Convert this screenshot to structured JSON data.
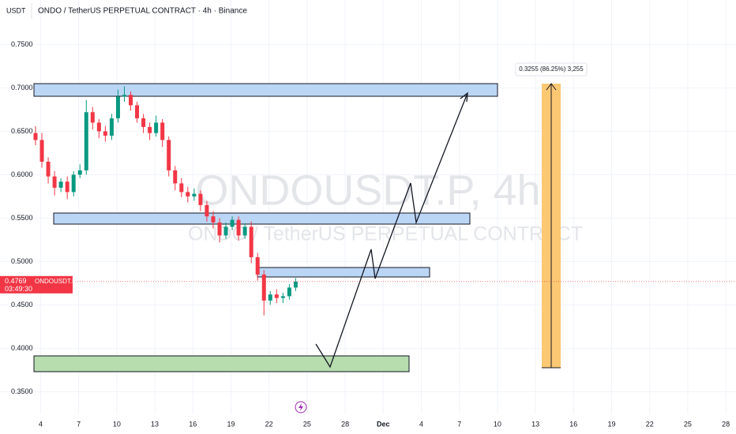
{
  "chart_data": {
    "type": "candlestick",
    "title": "ONDO / TetherUS PERPETUAL CONTRACT · 4h · Binance",
    "y_label": "USDT",
    "watermark": "ONDOUSDT.P, 4h",
    "watermark_subtitle": "ONDO / TetherUS PERPETUAL CONTRACT",
    "symbol_label": "ONDOUSDT.P",
    "last_price": 0.4769,
    "countdown": "03:49:30",
    "measure_label": "0.3255 (86.25%) 3,255",
    "up_color": "#089981",
    "down_color": "#f23645",
    "grid": true,
    "ylim": [
      0.324,
      0.774
    ],
    "yticks": [
      {
        "value": 0.75,
        "label": "0.7500"
      },
      {
        "value": 0.7,
        "label": "0.7000"
      },
      {
        "value": 0.65,
        "label": "0.6500"
      },
      {
        "value": 0.6,
        "label": "0.6000"
      },
      {
        "value": 0.55,
        "label": "0.5500"
      },
      {
        "value": 0.5,
        "label": "0.5000"
      },
      {
        "value": 0.45,
        "label": "0.4500"
      },
      {
        "value": 0.4,
        "label": "0.4000"
      },
      {
        "value": 0.35,
        "label": "0.3500"
      }
    ],
    "xlim": [
      -3.2,
      54.8
    ],
    "xticks": [
      {
        "value": 0,
        "label": "4"
      },
      {
        "value": 3,
        "label": "7"
      },
      {
        "value": 6,
        "label": "10"
      },
      {
        "value": 9,
        "label": "13"
      },
      {
        "value": 12,
        "label": "16"
      },
      {
        "value": 15,
        "label": "19"
      },
      {
        "value": 18,
        "label": "22"
      },
      {
        "value": 21,
        "label": "25"
      },
      {
        "value": 24,
        "label": "28"
      },
      {
        "value": 27,
        "label": "Dec"
      },
      {
        "value": 30,
        "label": "4"
      },
      {
        "value": 33,
        "label": "7"
      },
      {
        "value": 36,
        "label": "10"
      },
      {
        "value": 39,
        "label": "13"
      },
      {
        "value": 42,
        "label": "16"
      },
      {
        "value": 45,
        "label": "19"
      },
      {
        "value": 48,
        "label": "22"
      },
      {
        "value": 51,
        "label": "25"
      },
      {
        "value": 54,
        "label": "28"
      }
    ],
    "x": [
      -0.4,
      0.1,
      0.6,
      1.1,
      1.6,
      2.1,
      2.6,
      3.1,
      3.6,
      4.1,
      4.6,
      5.1,
      5.6,
      6.1,
      6.6,
      7.1,
      7.6,
      8.1,
      8.6,
      9.1,
      9.6,
      10.1,
      10.6,
      11.1,
      11.6,
      12.1,
      12.6,
      13.1,
      13.6,
      14.1,
      14.6,
      15.1,
      15.6,
      16.1,
      16.6,
      17.1,
      17.6,
      18.1,
      18.6,
      19.1,
      19.6,
      20.1
    ],
    "open": [
      0.648,
      0.64,
      0.615,
      0.598,
      0.585,
      0.592,
      0.58,
      0.6,
      0.605,
      0.672,
      0.66,
      0.65,
      0.645,
      0.665,
      0.69,
      0.692,
      0.68,
      0.665,
      0.655,
      0.648,
      0.66,
      0.64,
      0.605,
      0.59,
      0.58,
      0.575,
      0.578,
      0.565,
      0.552,
      0.545,
      0.53,
      0.54,
      0.548,
      0.53,
      0.54,
      0.505,
      0.485,
      0.455,
      0.462,
      0.458,
      0.46,
      0.47
    ],
    "high": [
      0.656,
      0.648,
      0.62,
      0.604,
      0.596,
      0.598,
      0.604,
      0.612,
      0.686,
      0.678,
      0.664,
      0.656,
      0.67,
      0.698,
      0.702,
      0.696,
      0.684,
      0.67,
      0.66,
      0.668,
      0.664,
      0.644,
      0.61,
      0.596,
      0.586,
      0.584,
      0.582,
      0.57,
      0.558,
      0.55,
      0.545,
      0.552,
      0.552,
      0.544,
      0.546,
      0.51,
      0.49,
      0.466,
      0.468,
      0.464,
      0.474,
      0.481
    ],
    "low": [
      0.634,
      0.608,
      0.59,
      0.576,
      0.58,
      0.572,
      0.575,
      0.596,
      0.6,
      0.652,
      0.642,
      0.638,
      0.64,
      0.66,
      0.684,
      0.674,
      0.66,
      0.648,
      0.64,
      0.644,
      0.632,
      0.598,
      0.582,
      0.574,
      0.568,
      0.57,
      0.558,
      0.546,
      0.538,
      0.522,
      0.526,
      0.536,
      0.524,
      0.526,
      0.498,
      0.478,
      0.438,
      0.45,
      0.452,
      0.452,
      0.456,
      0.466
    ],
    "close": [
      0.64,
      0.615,
      0.598,
      0.585,
      0.592,
      0.58,
      0.6,
      0.605,
      0.672,
      0.66,
      0.65,
      0.645,
      0.665,
      0.69,
      0.692,
      0.68,
      0.665,
      0.655,
      0.648,
      0.66,
      0.64,
      0.605,
      0.59,
      0.58,
      0.575,
      0.578,
      0.565,
      0.552,
      0.545,
      0.53,
      0.54,
      0.548,
      0.53,
      0.54,
      0.505,
      0.485,
      0.455,
      0.462,
      0.458,
      0.46,
      0.47,
      0.4769
    ]
  }
}
